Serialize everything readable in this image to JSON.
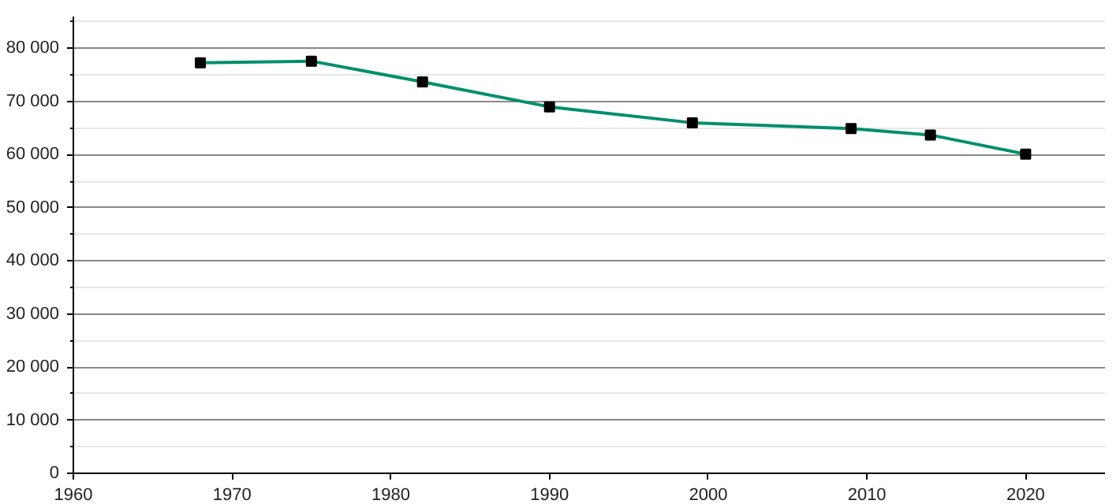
{
  "chart_data": {
    "type": "line",
    "x": [
      1968,
      1975,
      1982,
      1990,
      1999,
      2009,
      2014,
      2020
    ],
    "series": [
      {
        "color": "#008f6b",
        "values": [
          77300,
          77600,
          73700,
          69000,
          66000,
          64900,
          63700,
          60100
        ]
      }
    ],
    "xlim": [
      1960,
      2025
    ],
    "xticks": [
      1960,
      1970,
      1980,
      1990,
      2000,
      2010,
      2020
    ],
    "ylim": [
      0,
      86000
    ],
    "yticks": [
      0,
      {
        "value": 5000,
        "label": null
      },
      {
        "value": 10000,
        "label": "10 000"
      },
      {
        "value": 15000,
        "label": null
      },
      {
        "value": 20000,
        "label": "20 000"
      },
      {
        "value": 25000,
        "label": null
      },
      {
        "value": 30000,
        "label": "30 000"
      },
      {
        "value": 35000,
        "label": null
      },
      {
        "value": 40000,
        "label": "40 000"
      },
      {
        "value": 45000,
        "label": null
      },
      {
        "value": 50000,
        "label": "50 000"
      },
      {
        "value": 55000,
        "label": null
      },
      {
        "value": 60000,
        "label": "60 000"
      },
      {
        "value": 65000,
        "label": null
      },
      {
        "value": 70000,
        "label": "70 000"
      },
      {
        "value": 75000,
        "label": null
      },
      {
        "value": 80000,
        "label": "80 000"
      },
      {
        "value": 85000,
        "label": null
      }
    ],
    "grid": "y",
    "marker": "square",
    "line_style": "solid"
  }
}
